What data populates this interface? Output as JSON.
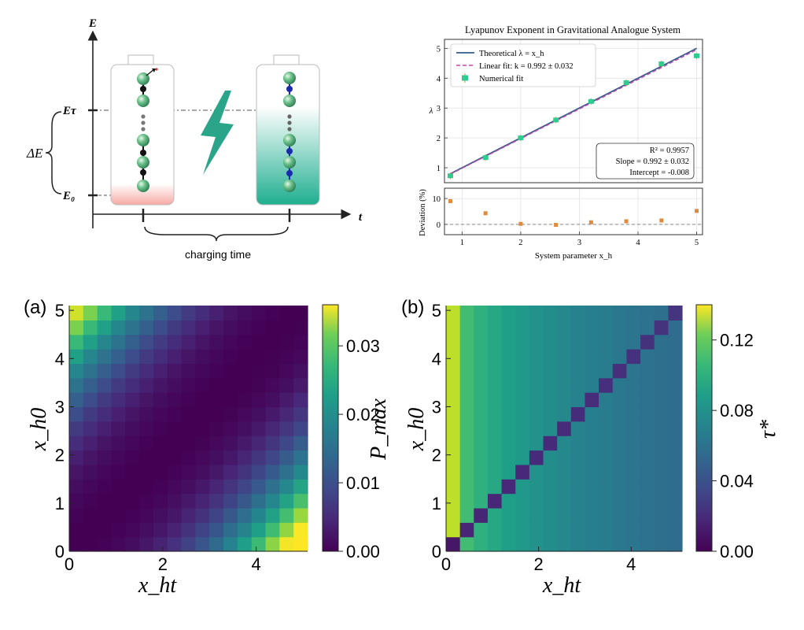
{
  "colors": {
    "theory_line": "#3b5a8c",
    "fit_line": "#c04aa8",
    "points": "#2ecc8f",
    "deviation_points": "#e08a3c",
    "battery_full": "#1fae8f",
    "battery_empty_base": "#f4a3a0",
    "lightning": "#2aa58a",
    "spin_ball": "#4caf7d",
    "link_dark": "#1a1a1a",
    "link_blue": "#1a2bb0"
  },
  "schematic": {
    "y_axis": "E",
    "x_axis": "t",
    "level_top": "Eτ",
    "level_bottom": "E₀",
    "delta": "ΔE",
    "caption": "charging time"
  },
  "chart_data": [
    {
      "id": "lyapunov",
      "type": "line",
      "title": "Lyapunov Exponent in Gravitational Analogue System",
      "xlabel": "System parameter x_h",
      "ylabel": "λ",
      "xlim": [
        0.7,
        5.1
      ],
      "ylim": [
        0.5,
        5.3
      ],
      "xticks": [
        "1",
        "2",
        "3",
        "4",
        "5"
      ],
      "yticks": [
        "1",
        "2",
        "3",
        "4",
        "5"
      ],
      "grid": true,
      "legend_position": "top-left",
      "legend": [
        "Theoretical λ = x_h",
        "Linear fit: k = 0.992 ± 0.032",
        "Numerical fit"
      ],
      "theory": {
        "x": [
          0.8,
          5.0
        ],
        "y": [
          0.8,
          5.0
        ]
      },
      "fit": {
        "slope": 0.992,
        "intercept": -0.008
      },
      "points": {
        "x": [
          0.8,
          1.4,
          2.0,
          2.6,
          3.2,
          3.8,
          4.4,
          5.0
        ],
        "y": [
          0.73,
          1.34,
          2.0,
          2.6,
          3.22,
          3.85,
          4.48,
          4.75
        ]
      },
      "stats": [
        "R² = 0.9957",
        "Slope = 0.992 ± 0.032",
        "Intercept = -0.008"
      ]
    },
    {
      "id": "deviation",
      "type": "scatter",
      "ylabel": "Deviation (%)",
      "xlim": [
        0.7,
        5.1
      ],
      "ylim": [
        -4,
        14
      ],
      "yticks": [
        "0",
        "10"
      ],
      "x": [
        0.8,
        1.4,
        2.0,
        2.6,
        3.2,
        3.8,
        4.4,
        5.0
      ],
      "y": [
        9.0,
        4.3,
        0.2,
        -0.2,
        0.8,
        1.2,
        1.5,
        5.2
      ]
    },
    {
      "id": "panel_a",
      "type": "heatmap",
      "label": "(a)",
      "xlabel": "x_ht",
      "ylabel": "x_h0",
      "xticks": [
        "0",
        "2",
        "4"
      ],
      "yticks": [
        "0",
        "1",
        "2",
        "3",
        "4",
        "5"
      ],
      "x_range": [
        0,
        5.1
      ],
      "y_range": [
        0,
        5.1
      ],
      "grid_size": 17,
      "colorbar_label": "P_max",
      "colorbar_ticks": [
        "0.00",
        "0.01",
        "0.02",
        "0.03"
      ],
      "colorbar_range": [
        0,
        0.036
      ]
    },
    {
      "id": "panel_b",
      "type": "heatmap",
      "label": "(b)",
      "xlabel": "x_ht",
      "ylabel": "x_h0",
      "xticks": [
        "0",
        "2",
        "4"
      ],
      "yticks": [
        "0",
        "1",
        "2",
        "3",
        "4",
        "5"
      ],
      "x_range": [
        0,
        5.1
      ],
      "y_range": [
        0,
        5.1
      ],
      "grid_size": 17,
      "colorbar_label": "τ*",
      "colorbar_ticks": [
        "0.00",
        "0.04",
        "0.08",
        "0.12"
      ],
      "colorbar_range": [
        0,
        0.14
      ]
    }
  ]
}
